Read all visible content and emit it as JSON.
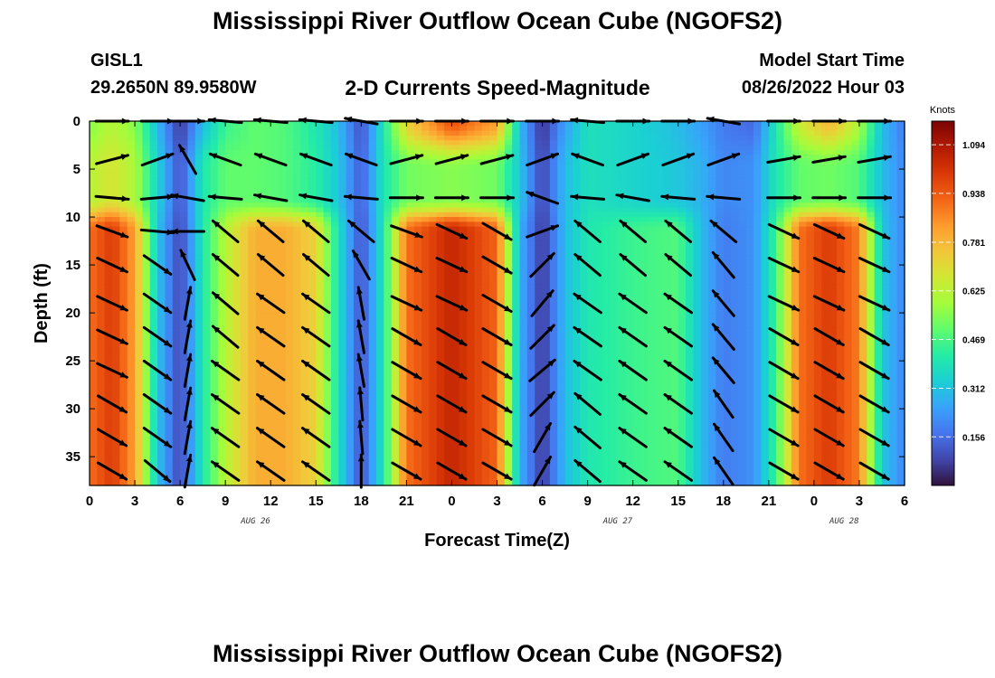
{
  "header": {
    "title": "Mississippi River Outflow Ocean Cube (NGOFS2)",
    "station_id": "GISL1",
    "station_coords": "29.2650N  89.9580W",
    "plot_title": "2-D Currents Speed-Magnitude",
    "model_start_label": "Model Start Time",
    "model_start_value": "08/26/2022 Hour 03"
  },
  "footer": {
    "title": "Mississippi River Outflow Ocean Cube (NGOFS2)"
  },
  "chart_data": {
    "type": "heatmap",
    "xlabel": "Forecast Time(Z)",
    "ylabel": "Depth (ft)",
    "x_range_hours": [
      0,
      54
    ],
    "y_range": [
      0,
      38
    ],
    "y_inverted": true,
    "x_ticks": [
      {
        "hour": 0,
        "label": "0"
      },
      {
        "hour": 3,
        "label": "3"
      },
      {
        "hour": 6,
        "label": "6"
      },
      {
        "hour": 9,
        "label": "9"
      },
      {
        "hour": 12,
        "label": "12"
      },
      {
        "hour": 15,
        "label": "15"
      },
      {
        "hour": 18,
        "label": "18"
      },
      {
        "hour": 21,
        "label": "21"
      },
      {
        "hour": 24,
        "label": "0"
      },
      {
        "hour": 27,
        "label": "3"
      },
      {
        "hour": 30,
        "label": "6"
      },
      {
        "hour": 33,
        "label": "9"
      },
      {
        "hour": 36,
        "label": "12"
      },
      {
        "hour": 39,
        "label": "15"
      },
      {
        "hour": 42,
        "label": "18"
      },
      {
        "hour": 45,
        "label": "21"
      },
      {
        "hour": 48,
        "label": "0"
      },
      {
        "hour": 51,
        "label": "3"
      },
      {
        "hour": 54,
        "label": "6"
      }
    ],
    "date_labels": [
      {
        "hour": 11,
        "label": "AUG 26"
      },
      {
        "hour": 35,
        "label": "AUG 27"
      },
      {
        "hour": 50,
        "label": "AUG 28"
      }
    ],
    "y_ticks": [
      0,
      5,
      10,
      15,
      20,
      25,
      30,
      35
    ],
    "colorbar": {
      "unit": "Knots",
      "min": 0,
      "max": 1.17,
      "ticks": [
        "1.094",
        "0.938",
        "0.781",
        "0.625",
        "0.469",
        "0.312",
        "0.156"
      ],
      "colormap": [
        "#30123b",
        "#4145ab",
        "#4675ed",
        "#39a2fc",
        "#1bcfd4",
        "#24eca6",
        "#61fc6c",
        "#a4fc3b",
        "#d1e834",
        "#f3c63a",
        "#fe9b2d",
        "#f36315",
        "#d93806",
        "#b11901",
        "#7a0403"
      ]
    },
    "speed_profile": [
      {
        "hour": 0,
        "surface": 0.55,
        "mid": 0.62,
        "deep": 0.9
      },
      {
        "hour": 1.5,
        "surface": 0.62,
        "mid": 0.68,
        "deep": 1.0
      },
      {
        "hour": 3,
        "surface": 0.55,
        "mid": 0.6,
        "deep": 0.82
      },
      {
        "hour": 4.5,
        "surface": 0.3,
        "mid": 0.35,
        "deep": 0.32
      },
      {
        "hour": 6,
        "surface": 0.06,
        "mid": 0.1,
        "deep": 0.08
      },
      {
        "hour": 7.5,
        "surface": 0.3,
        "mid": 0.4,
        "deep": 0.4
      },
      {
        "hour": 9,
        "surface": 0.45,
        "mid": 0.5,
        "deep": 0.62
      },
      {
        "hour": 11,
        "surface": 0.5,
        "mid": 0.5,
        "deep": 0.8
      },
      {
        "hour": 13,
        "surface": 0.48,
        "mid": 0.48,
        "deep": 0.8
      },
      {
        "hour": 15,
        "surface": 0.4,
        "mid": 0.42,
        "deep": 0.72
      },
      {
        "hour": 16.5,
        "surface": 0.3,
        "mid": 0.32,
        "deep": 0.38
      },
      {
        "hour": 18,
        "surface": 0.1,
        "mid": 0.12,
        "deep": 0.1
      },
      {
        "hour": 19.5,
        "surface": 0.4,
        "mid": 0.4,
        "deep": 0.4
      },
      {
        "hour": 21,
        "surface": 0.72,
        "mid": 0.52,
        "deep": 0.9
      },
      {
        "hour": 24,
        "surface": 0.95,
        "mid": 0.55,
        "deep": 1.05
      },
      {
        "hour": 27,
        "surface": 0.82,
        "mid": 0.52,
        "deep": 0.92
      },
      {
        "hour": 28.5,
        "surface": 0.3,
        "mid": 0.32,
        "deep": 0.28
      },
      {
        "hour": 30,
        "surface": 0.05,
        "mid": 0.08,
        "deep": 0.06
      },
      {
        "hour": 31.5,
        "surface": 0.25,
        "mid": 0.3,
        "deep": 0.3
      },
      {
        "hour": 33,
        "surface": 0.38,
        "mid": 0.38,
        "deep": 0.4
      },
      {
        "hour": 36,
        "surface": 0.35,
        "mid": 0.35,
        "deep": 0.45
      },
      {
        "hour": 39,
        "surface": 0.3,
        "mid": 0.32,
        "deep": 0.48
      },
      {
        "hour": 40.5,
        "surface": 0.25,
        "mid": 0.28,
        "deep": 0.3
      },
      {
        "hour": 42,
        "surface": 0.18,
        "mid": 0.2,
        "deep": 0.18
      },
      {
        "hour": 44,
        "surface": 0.15,
        "mid": 0.22,
        "deep": 0.22
      },
      {
        "hour": 45.5,
        "surface": 0.4,
        "mid": 0.4,
        "deep": 0.45
      },
      {
        "hour": 47,
        "surface": 0.65,
        "mid": 0.5,
        "deep": 0.9
      },
      {
        "hour": 49,
        "surface": 0.78,
        "mid": 0.52,
        "deep": 1.0
      },
      {
        "hour": 51,
        "surface": 0.6,
        "mid": 0.48,
        "deep": 0.88
      },
      {
        "hour": 52.5,
        "surface": 0.3,
        "mid": 0.3,
        "deep": 0.32
      },
      {
        "hour": 54,
        "surface": 0.18,
        "mid": 0.2,
        "deep": 0.2
      }
    ],
    "vector_rows_depth": [
      0,
      4,
      8,
      11.5,
      15,
      19,
      22.5,
      26,
      29.5,
      33,
      36.5
    ],
    "vectors": [
      {
        "hour": 1.5,
        "dir_deg": [
          0,
          15,
          -5,
          -20,
          -25,
          -25,
          -25,
          -25,
          -30,
          -30,
          -30
        ]
      },
      {
        "hour": 4.5,
        "dir_deg": [
          0,
          20,
          5,
          -5,
          -35,
          -35,
          -35,
          -35,
          -35,
          -35,
          -40
        ]
      },
      {
        "hour": 6.5,
        "dir_deg": [
          0,
          120,
          170,
          180,
          115,
          80,
          80,
          80,
          80,
          80,
          80
        ]
      },
      {
        "hour": 9,
        "dir_deg": [
          175,
          160,
          175,
          140,
          140,
          140,
          140,
          145,
          145,
          145,
          145
        ]
      },
      {
        "hour": 12,
        "dir_deg": [
          175,
          160,
          170,
          140,
          140,
          145,
          145,
          145,
          145,
          145,
          145
        ]
      },
      {
        "hour": 15,
        "dir_deg": [
          175,
          160,
          170,
          140,
          140,
          145,
          145,
          145,
          145,
          145,
          145
        ]
      },
      {
        "hour": 18,
        "dir_deg": [
          170,
          160,
          175,
          140,
          120,
          100,
          100,
          100,
          95,
          95,
          90
        ]
      },
      {
        "hour": 21,
        "dir_deg": [
          0,
          15,
          0,
          -20,
          -25,
          -25,
          -30,
          -30,
          -30,
          -30,
          -30
        ]
      },
      {
        "hour": 24,
        "dir_deg": [
          0,
          15,
          0,
          -25,
          -25,
          -25,
          -30,
          -30,
          -30,
          -30,
          -30
        ]
      },
      {
        "hour": 27,
        "dir_deg": [
          0,
          15,
          0,
          -30,
          -30,
          -30,
          -30,
          -30,
          -30,
          -30,
          -30
        ]
      },
      {
        "hour": 30,
        "dir_deg": [
          0,
          20,
          160,
          20,
          45,
          50,
          45,
          40,
          45,
          60,
          60
        ]
      },
      {
        "hour": 33,
        "dir_deg": [
          175,
          160,
          175,
          140,
          140,
          145,
          145,
          145,
          140,
          140,
          140
        ]
      },
      {
        "hour": 36,
        "dir_deg": [
          0,
          20,
          170,
          140,
          140,
          145,
          145,
          145,
          145,
          145,
          145
        ]
      },
      {
        "hour": 39,
        "dir_deg": [
          0,
          20,
          175,
          140,
          140,
          145,
          145,
          145,
          145,
          145,
          145
        ]
      },
      {
        "hour": 42,
        "dir_deg": [
          170,
          20,
          175,
          140,
          130,
          130,
          130,
          130,
          125,
          125,
          125
        ]
      },
      {
        "hour": 46,
        "dir_deg": [
          0,
          10,
          0,
          -25,
          -25,
          -25,
          -30,
          -30,
          -30,
          -30,
          -30
        ]
      },
      {
        "hour": 49,
        "dir_deg": [
          0,
          10,
          0,
          -25,
          -25,
          -25,
          -30,
          -30,
          -30,
          -30,
          -30
        ]
      },
      {
        "hour": 52,
        "dir_deg": [
          0,
          10,
          0,
          -25,
          -25,
          -25,
          -30,
          -30,
          -30,
          -30,
          -30
        ]
      }
    ]
  }
}
